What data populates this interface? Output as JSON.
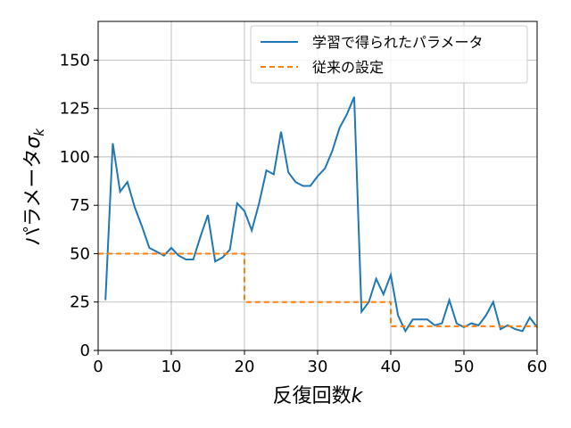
{
  "chart_data": {
    "type": "line",
    "xlabel": "反復回数k",
    "ylabel": "パラメータσ_k",
    "xlim": [
      0,
      60
    ],
    "ylim": [
      0,
      170
    ],
    "xticks": [
      0,
      10,
      20,
      30,
      40,
      50,
      60
    ],
    "yticks": [
      0,
      25,
      50,
      75,
      100,
      125,
      150
    ],
    "grid": true,
    "legend_position": "top-right",
    "series": [
      {
        "name": "学習で得られたパラメータ",
        "color": "#1f77b4",
        "style": "solid",
        "x": [
          1,
          2,
          3,
          4,
          5,
          6,
          7,
          8,
          9,
          10,
          11,
          12,
          13,
          14,
          15,
          16,
          17,
          18,
          19,
          20,
          21,
          22,
          23,
          24,
          25,
          26,
          27,
          28,
          29,
          30,
          31,
          32,
          33,
          34,
          35,
          36,
          37,
          38,
          39,
          40,
          41,
          42,
          43,
          44,
          45,
          46,
          47,
          48,
          49,
          50,
          51,
          52,
          53,
          54,
          55,
          56,
          57,
          58,
          59,
          60
        ],
        "y": [
          26,
          107,
          82,
          87,
          74,
          64,
          53,
          51,
          49,
          53,
          49,
          47,
          47,
          59,
          70,
          46,
          48,
          52,
          76,
          72,
          62,
          76,
          93,
          91,
          113,
          92,
          87,
          85,
          85,
          90,
          94,
          103,
          115,
          122,
          131,
          20,
          25,
          37,
          29,
          39,
          18,
          10,
          16,
          16,
          16,
          13,
          14,
          26,
          14,
          12,
          14,
          13,
          18,
          25,
          11,
          13,
          11,
          10,
          17,
          12
        ]
      },
      {
        "name": "従来の設定",
        "color": "#ff7f0e",
        "style": "dashed",
        "x": [
          0,
          20,
          20,
          40,
          40,
          60
        ],
        "y": [
          50,
          50,
          25,
          25,
          12.5,
          12.5
        ]
      }
    ]
  }
}
